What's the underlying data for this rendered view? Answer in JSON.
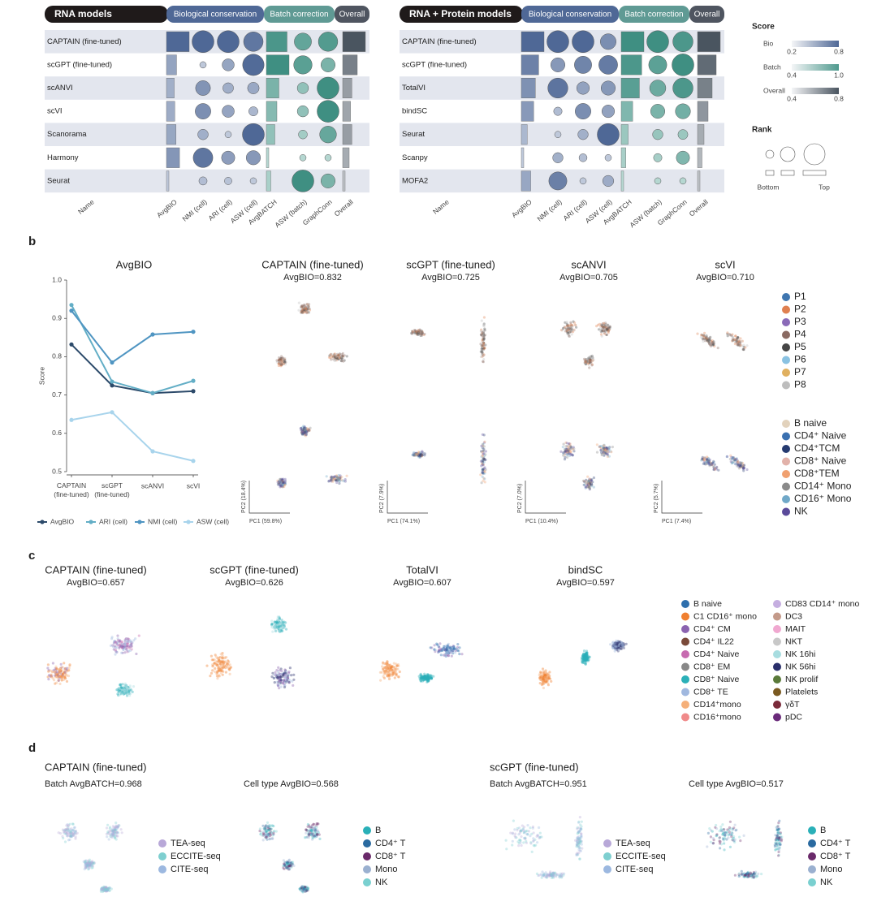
{
  "panel_labels": [
    "b",
    "c",
    "d"
  ],
  "panel_a": {
    "tables": [
      {
        "title": "RNA models",
        "groups": [
          "Biological conservation",
          "Batch correction",
          "Overall"
        ],
        "columns": [
          "Name",
          "AvgBIO",
          "NMI (cell)",
          "ARI (cell)",
          "ASW (cell)",
          "AvgBATCH",
          "ASW (batch)",
          "GraphConn",
          "Overall"
        ],
        "rows": [
          {
            "name": "CAPTAIN (fine-tuned)",
            "values": [
              0.832,
              0.92,
              0.935,
              0.635,
              0.91,
              0.89,
              0.95,
              0.86
            ]
          },
          {
            "name": "scGPT (fine-tuned)",
            "values": [
              0.725,
              0.785,
              0.735,
              0.655,
              0.92,
              0.9,
              0.93,
              0.8
            ]
          },
          {
            "name": "scANVI",
            "values": [
              0.705,
              0.858,
              0.705,
              0.553,
              0.87,
              0.84,
              0.96,
              0.76
            ]
          },
          {
            "name": "scVI",
            "values": [
              0.71,
              0.865,
              0.737,
              0.528,
              0.86,
              0.84,
              0.96,
              0.75
            ]
          },
          {
            "name": "Scanorama",
            "values": [
              0.72,
              0.82,
              0.62,
              0.66,
              0.85,
              0.82,
              0.94,
              0.76
            ]
          },
          {
            "name": "Harmony",
            "values": [
              0.75,
              0.9,
              0.76,
              0.58,
              0.82,
              0.8,
              0.9,
              0.74
            ]
          },
          {
            "name": "Seurat",
            "values": [
              0.66,
              0.8,
              0.64,
              0.5,
              0.83,
              0.93,
              0.93,
              0.71
            ]
          }
        ]
      },
      {
        "title": "RNA + Protein models",
        "groups": [
          "Biological conservation",
          "Batch correction",
          "Overall"
        ],
        "columns": [
          "Name",
          "AvgBIO",
          "NMI (cell)",
          "ARI (cell)",
          "ASW (cell)",
          "AvgBATCH",
          "ASW (batch)",
          "GraphConn",
          "Overall"
        ],
        "rows": [
          {
            "name": "CAPTAIN (fine-tuned)",
            "values": [
              0.657,
              0.75,
              0.7,
              0.56,
              0.93,
              0.9,
              0.95,
              0.77
            ]
          },
          {
            "name": "scGPT (fine-tuned)",
            "values": [
              0.626,
              0.71,
              0.64,
              0.58,
              0.92,
              0.88,
              0.96,
              0.75
            ]
          },
          {
            "name": "TotalVI",
            "values": [
              0.607,
              0.74,
              0.58,
              0.55,
              0.91,
              0.87,
              0.95,
              0.73
            ]
          },
          {
            "name": "bindSC",
            "values": [
              0.597,
              0.68,
              0.62,
              0.54,
              0.88,
              0.86,
              0.92,
              0.71
            ]
          },
          {
            "name": "Seurat",
            "values": [
              0.56,
              0.67,
              0.55,
              0.6,
              0.86,
              0.84,
              0.89,
              0.69
            ]
          },
          {
            "name": "Scanpy",
            "values": [
              0.54,
              0.69,
              0.52,
              0.5,
              0.85,
              0.83,
              0.91,
              0.68
            ]
          },
          {
            "name": "MOFA2",
            "values": [
              0.58,
              0.73,
              0.5,
              0.53,
              0.84,
              0.82,
              0.87,
              0.67
            ]
          }
        ]
      }
    ],
    "score_legend": {
      "title": "Score",
      "scales": [
        {
          "label": "Bio",
          "range": [
            0.2,
            0.8
          ],
          "color": "#4f6896"
        },
        {
          "label": "Batch",
          "range": [
            0.4,
            {
              "value": 1,
              "label": "1.0"
            }
          ],
          "color": "#4f9a8e"
        },
        {
          "label": "Overall",
          "range": [
            0.4,
            0.8
          ],
          "color": "#4a5560"
        }
      ]
    },
    "rank_legend": {
      "title": "Rank",
      "labels": [
        "Bottom",
        "Top"
      ]
    }
  },
  "chart_data": {
    "type": "line",
    "title": "AvgBIO",
    "y_label": "Score",
    "categories": [
      "CAPTAIN (fine-tuned)",
      "scGPT (fine-tuned)",
      "scANVI",
      "scVI"
    ],
    "series": [
      {
        "name": "AvgBIO",
        "color": "#2c4a6a",
        "values": [
          0.832,
          0.725,
          0.705,
          0.71
        ]
      },
      {
        "name": "ARI (cell)",
        "color": "#63aec6",
        "values": [
          0.935,
          0.735,
          0.705,
          0.737
        ]
      },
      {
        "name": "NMI (cell)",
        "color": "#4f95c2",
        "values": [
          0.92,
          0.785,
          0.858,
          0.865
        ]
      },
      {
        "name": "ASW (cell)",
        "color": "#a8d4ec",
        "values": [
          0.635,
          0.655,
          0.553,
          0.528
        ]
      }
    ],
    "ylim": [
      0.5,
      1.0
    ],
    "yticks": [
      0.5,
      0.6,
      0.7,
      0.8,
      0.9,
      {
        "value": 1,
        "label": "1.0"
      }
    ]
  },
  "panel_b": {
    "embeddings": [
      {
        "title": "CAPTAIN (fine-tuned)",
        "subtitle": "AvgBIO=0.832",
        "x_label": "PC1 (59.8%)",
        "y_label": "PC2 (18.4%)"
      },
      {
        "title": "scGPT (fine-tuned)",
        "subtitle": "AvgBIO=0.725",
        "x_label": "PC1 (74.1%)",
        "y_label": "PC2 (7.9%)"
      },
      {
        "title": "scANVI",
        "subtitle": "AvgBIO=0.705",
        "x_label": "PC1 (10.4%)",
        "y_label": "PC2 (7.0%)"
      },
      {
        "title": "scVI",
        "subtitle": "AvgBIO=0.710",
        "x_label": "PC1 (7.4%)",
        "y_label": "PC2 (5.7%)"
      }
    ],
    "legend_batch": [
      {
        "name": "P1",
        "color": "#3f76b0"
      },
      {
        "name": "P2",
        "color": "#df8050"
      },
      {
        "name": "P3",
        "color": "#8a6ab8"
      },
      {
        "name": "P4",
        "color": "#8a6a62"
      },
      {
        "name": "P5",
        "color": "#454545"
      },
      {
        "name": "P6",
        "color": "#8ac2e2"
      },
      {
        "name": "P7",
        "color": "#e0b060"
      },
      {
        "name": "P8",
        "color": "#bdbdbd"
      }
    ],
    "legend_celltype": [
      {
        "name": "B naive",
        "color": "#e2d2bc"
      },
      {
        "name": "CD4⁺ Naive",
        "color": "#3a70b0"
      },
      {
        "name": "CD4⁺TCM",
        "color": "#253a70"
      },
      {
        "name": "CD8⁺ Naive",
        "color": "#e2b2aa"
      },
      {
        "name": "CD8⁺TEM",
        "color": "#f0a070"
      },
      {
        "name": "CD14⁺ Mono",
        "color": "#8a8a8a"
      },
      {
        "name": "CD16⁺ Mono",
        "color": "#70a8c8"
      },
      {
        "name": "NK",
        "color": "#5a4a9a"
      }
    ]
  },
  "panel_c": {
    "embeddings": [
      {
        "title": "CAPTAIN (fine-tuned)",
        "subtitle": "AvgBIO=0.657"
      },
      {
        "title": "scGPT (fine-tuned)",
        "subtitle": "AvgBIO=0.626"
      },
      {
        "title": "TotalVI",
        "subtitle": "AvgBIO=0.607"
      },
      {
        "title": "bindSC",
        "subtitle": "AvgBIO=0.597"
      }
    ],
    "legend": [
      {
        "name": "B naive",
        "color": "#2e6fad"
      },
      {
        "name": "C1 CD16⁺ mono",
        "color": "#f08030"
      },
      {
        "name": "CD4⁺ CM",
        "color": "#8b63b0"
      },
      {
        "name": "CD4⁺ IL22",
        "color": "#7a4a3a"
      },
      {
        "name": "CD4⁺ Naive",
        "color": "#c76bb0"
      },
      {
        "name": "CD8⁺ EM",
        "color": "#888888"
      },
      {
        "name": "CD8⁺ Naive",
        "color": "#2bb0b8"
      },
      {
        "name": "CD8⁺ TE",
        "color": "#a0b8df"
      },
      {
        "name": "CD14⁺mono",
        "color": "#f5b07a"
      },
      {
        "name": "CD16⁺mono",
        "color": "#f08a8a"
      },
      {
        "name": "CD83 CD14⁺ mono",
        "color": "#c5aee0"
      },
      {
        "name": "DC3",
        "color": "#c49a8a"
      },
      {
        "name": "MAIT",
        "color": "#f0a8d0"
      },
      {
        "name": "NKT",
        "color": "#c8c8c8"
      },
      {
        "name": "NK 16hi",
        "color": "#a8dde0"
      },
      {
        "name": "NK 56hi",
        "color": "#2a2f6b"
      },
      {
        "name": "NK prolif",
        "color": "#5a7a3a"
      },
      {
        "name": "Platelets",
        "color": "#7a5a20"
      },
      {
        "name": "γδT",
        "color": "#7a2a3a"
      },
      {
        "name": "pDC",
        "color": "#6a2a7a"
      }
    ]
  },
  "panel_d": {
    "groups": [
      {
        "title": "CAPTAIN (fine-tuned)",
        "batch_title": "Batch AvgBATCH=0.968",
        "celltype_title": "Cell type AvgBIO=0.568"
      },
      {
        "title": "scGPT (fine-tuned)",
        "batch_title": "Batch AvgBATCH=0.951",
        "celltype_title": "Cell type AvgBIO=0.517"
      }
    ],
    "batch_legend": [
      {
        "name": "TEA-seq",
        "color": "#b8a8d8"
      },
      {
        "name": "ECCITE-seq",
        "color": "#7ecfd0"
      },
      {
        "name": "CITE-seq",
        "color": "#9cb8e0"
      }
    ],
    "celltype_legend": [
      {
        "name": "B",
        "color": "#2ab0b8"
      },
      {
        "name": "CD4⁺ T",
        "color": "#2a6aa0"
      },
      {
        "name": "CD8⁺ T",
        "color": "#6a2a6a"
      },
      {
        "name": "Mono",
        "color": "#9ab0d0"
      },
      {
        "name": "NK",
        "color": "#7ad0d0"
      }
    ]
  }
}
